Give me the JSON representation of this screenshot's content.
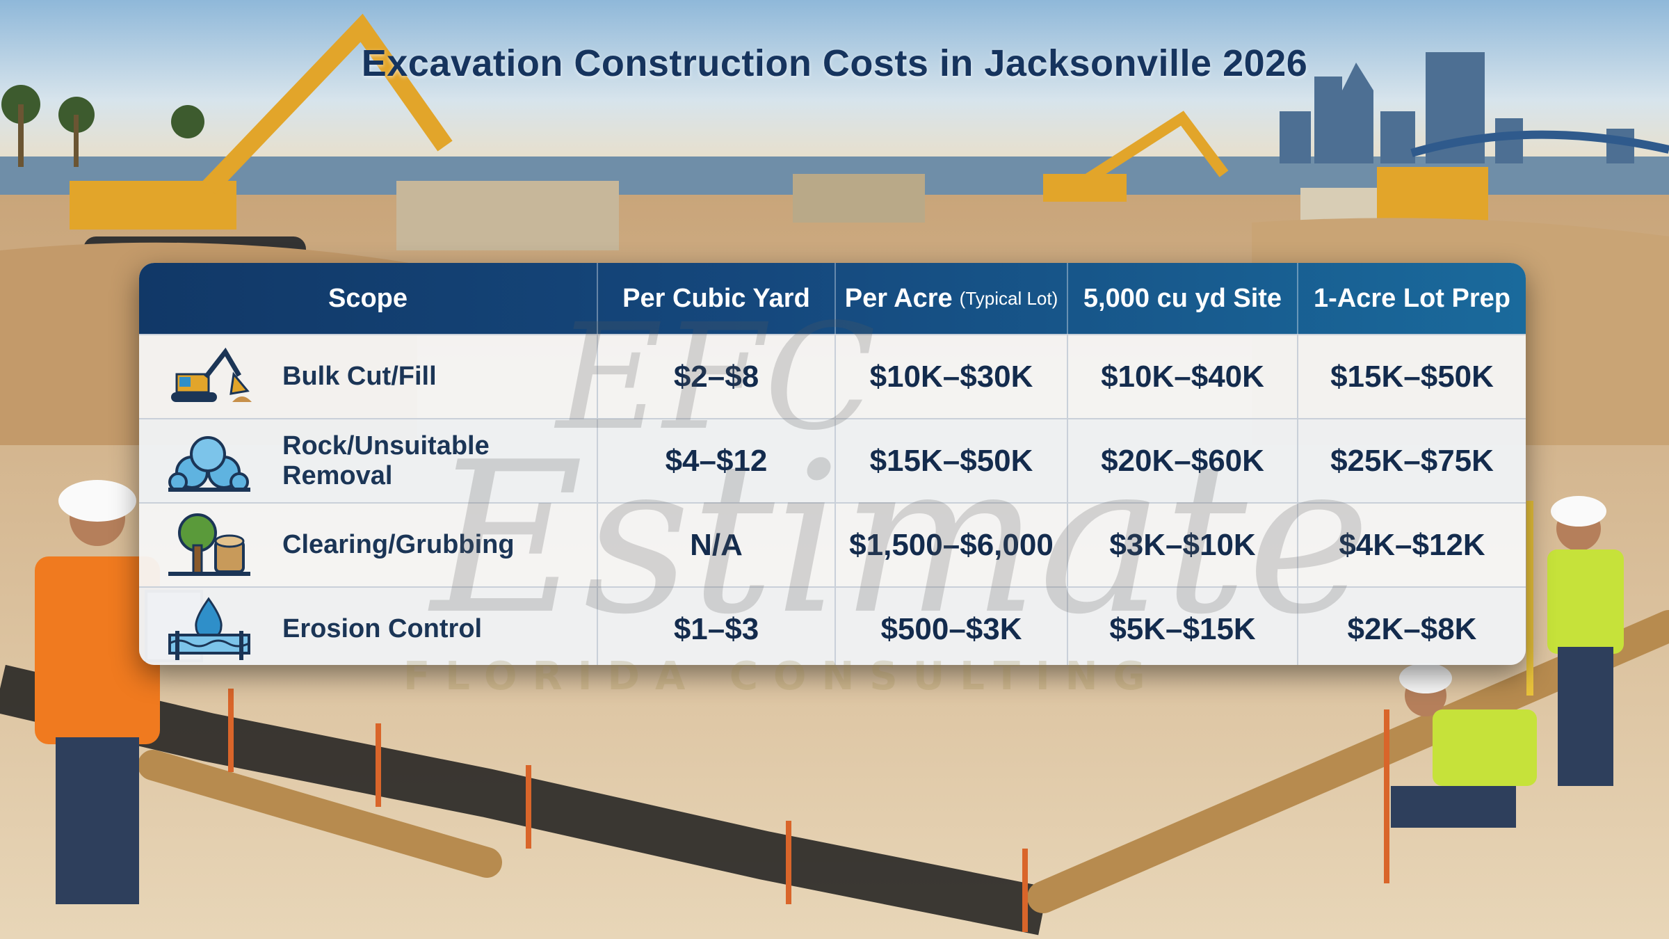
{
  "title": "Excavation Construction Costs in Jacksonville 2026",
  "table": {
    "headers": [
      {
        "label": "Scope",
        "sub": ""
      },
      {
        "label": "Per Cubic Yard",
        "sub": ""
      },
      {
        "label": "Per Acre",
        "sub": "(Typical Lot)"
      },
      {
        "label": "5,000 cu yd Site",
        "sub": ""
      },
      {
        "label": "1-Acre Lot Prep",
        "sub": ""
      }
    ],
    "rows": [
      {
        "icon": "excavator-icon",
        "scope": "Bulk Cut/Fill",
        "per_cubic_yard": "$2–$8",
        "per_acre": "$10K–$30K",
        "site_5000": "$10K–$40K",
        "lot_prep": "$15K–$50K"
      },
      {
        "icon": "rock-pile-icon",
        "scope": "Rock/Unsuitable Removal",
        "per_cubic_yard": "$4–$12",
        "per_acre": "$15K–$50K",
        "site_5000": "$20K–$60K",
        "lot_prep": "$25K–$75K"
      },
      {
        "icon": "tree-stump-icon",
        "scope": "Clearing/Grubbing",
        "per_cubic_yard": "N/A",
        "per_acre": "$1,500–$6,000",
        "site_5000": "$3K–$10K",
        "lot_prep": "$4K–$12K"
      },
      {
        "icon": "water-drop-silt-fence-icon",
        "scope": "Erosion Control",
        "per_cubic_yard": "$1–$3",
        "per_acre": "$500–$3K",
        "site_5000": "$5K–$15K",
        "lot_prep": "$2K–$8K"
      }
    ]
  },
  "watermark": {
    "top": "EFC",
    "main": "Estimate",
    "sub": "FLORIDA CONSULTING"
  },
  "colors": {
    "header_start": "#113867",
    "header_end": "#1a6a9c",
    "title": "#16345e",
    "icon_blue": "#2f8fc9",
    "icon_dark": "#1b3556"
  }
}
